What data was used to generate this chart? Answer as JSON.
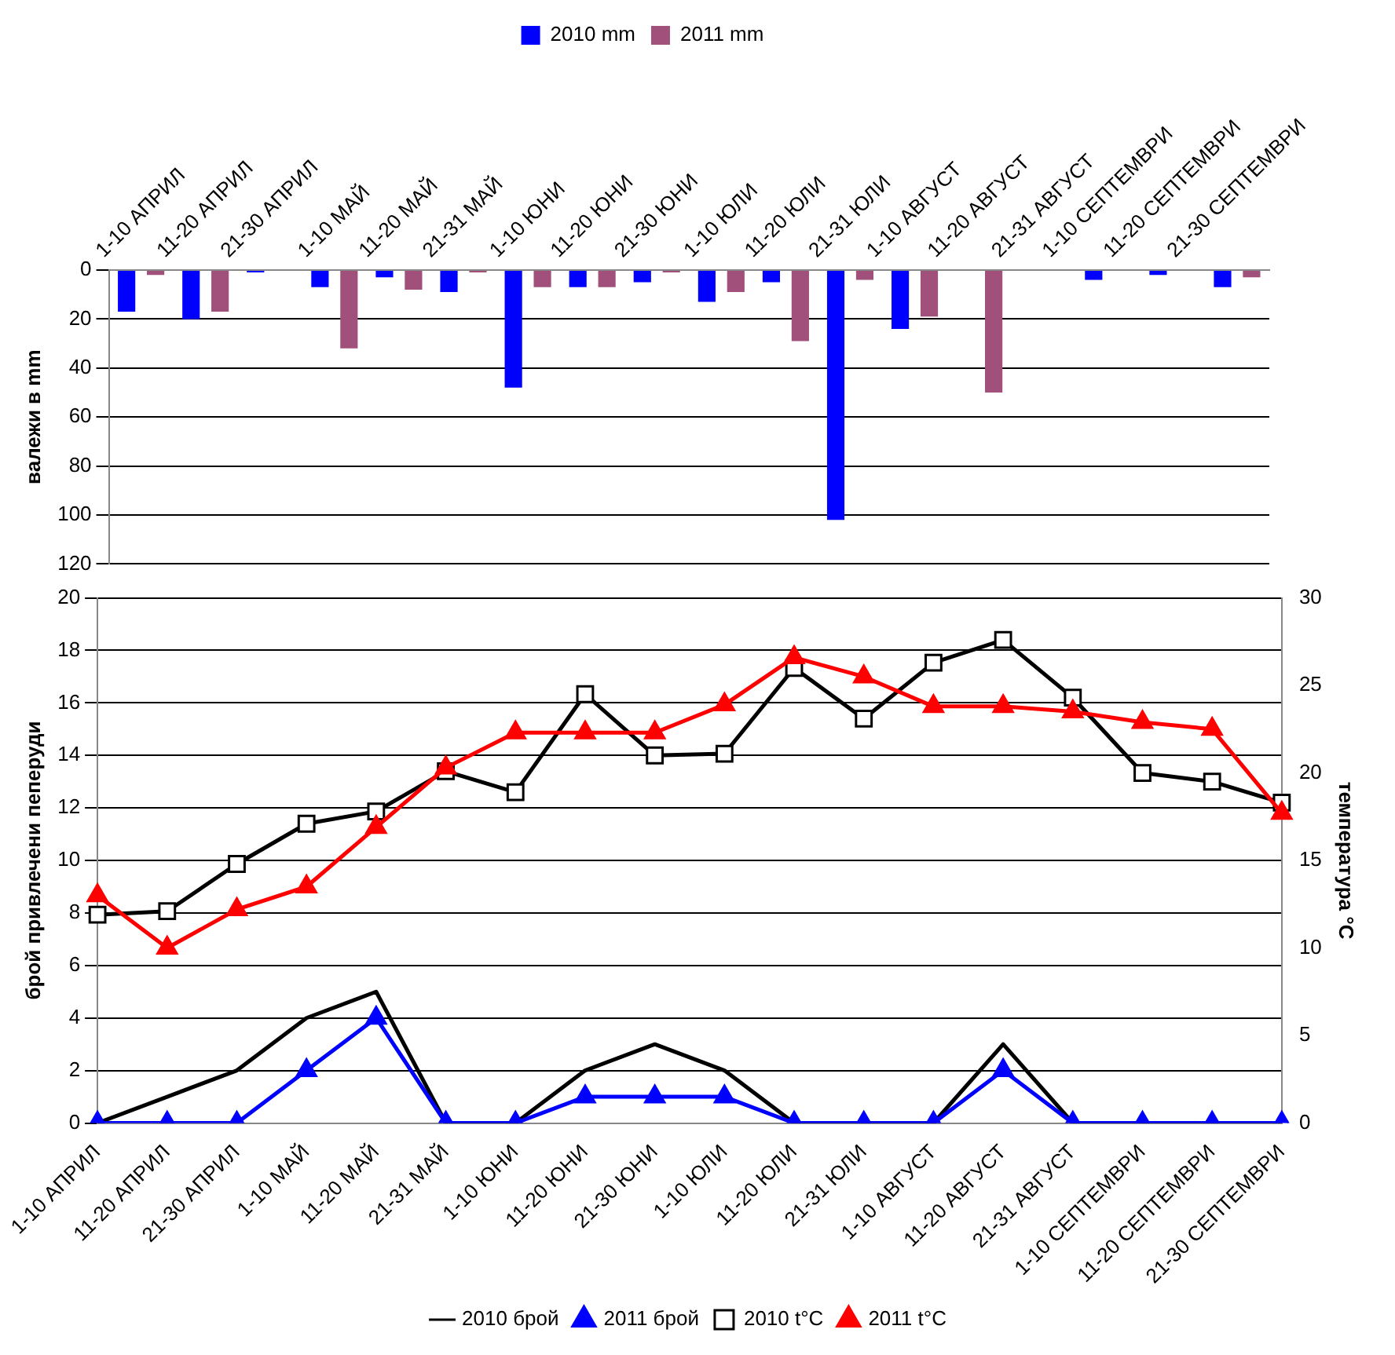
{
  "chart_data": [
    {
      "type": "bar",
      "ylabel": "валежи в mm",
      "categories": [
        "1-10 АПРИЛ",
        "11-20 АПРИЛ",
        "21-30 АПРИЛ",
        "1-10 МАЙ",
        "11-20 МАЙ",
        "21-31 МАЙ",
        "1-10 ЮНИ",
        "11-20 ЮНИ",
        "21-30 ЮНИ",
        "1-10 ЮЛИ",
        "11-20 ЮЛИ",
        "21-31 ЮЛИ",
        "1-10 АВГУСТ",
        "11-20 АВГУСТ",
        "21-31 АВГУСТ",
        "1-10 СЕПТЕМВРИ",
        "11-20 СЕПТЕМВРИ",
        "21-30 СЕПТЕМВРИ"
      ],
      "series": [
        {
          "name": "2010 mm",
          "color": "#0000ff",
          "values": [
            17,
            20,
            1,
            7,
            3,
            9,
            48,
            7,
            5,
            13,
            5,
            102,
            24,
            0,
            0,
            4,
            2,
            7
          ]
        },
        {
          "name": "2011 mm",
          "color": "#a0507a",
          "values": [
            2,
            17,
            0,
            32,
            8,
            1,
            7,
            7,
            1,
            9,
            29,
            4,
            19,
            50,
            0,
            0,
            0,
            3
          ]
        }
      ],
      "ylim": [
        120,
        0
      ],
      "yticks": [
        0,
        20,
        40,
        60,
        80,
        100,
        120
      ],
      "grid": "y",
      "legend": "top"
    },
    {
      "type": "line",
      "ylabel": "брой привлечени пеперуди",
      "y2label": "температура °C",
      "categories": [
        "1-10 АПРИЛ",
        "11-20 АПРИЛ",
        "21-30 АПРИЛ",
        "1-10 МАЙ",
        "11-20 МАЙ",
        "21-31 МАЙ",
        "1-10 ЮНИ",
        "11-20 ЮНИ",
        "21-30 ЮНИ",
        "1-10 ЮЛИ",
        "11-20 ЮЛИ",
        "21-31 ЮЛИ",
        "1-10 АВГУСТ",
        "11-20 АВГУСТ",
        "21-31 АВГУСТ",
        "1-10 СЕПТЕМВРИ",
        "11-20 СЕПТЕМВРИ",
        "21-30 СЕПТЕМВРИ"
      ],
      "series": [
        {
          "name": "2010 брой",
          "color": "#000000",
          "marker": "none",
          "values": [
            0,
            1,
            2,
            4,
            5,
            0,
            0,
            2,
            3,
            2,
            0,
            0,
            0,
            3,
            0,
            0,
            0,
            0
          ]
        },
        {
          "name": "2011 брой",
          "color": "#0000ff",
          "marker": "triangle",
          "values": [
            0,
            0,
            0,
            2,
            4,
            0,
            0,
            1,
            1,
            1,
            0,
            0,
            0,
            2,
            0,
            0,
            0,
            0
          ]
        },
        {
          "name": "2010 t°C",
          "color": "#000000",
          "marker": "square",
          "axis": "y2",
          "values": [
            11.9,
            12.1,
            14.8,
            17.1,
            17.8,
            20.1,
            18.9,
            24.5,
            21.0,
            21.1,
            26.0,
            23.1,
            26.3,
            27.6,
            24.3,
            20.0,
            19.5,
            18.3
          ]
        },
        {
          "name": "2011 t°C",
          "color": "#ff0000",
          "marker": "triangle",
          "axis": "y2",
          "values": [
            13.0,
            10.0,
            12.2,
            13.5,
            16.9,
            20.3,
            22.3,
            22.3,
            22.3,
            23.9,
            26.6,
            25.5,
            23.8,
            23.8,
            23.5,
            22.9,
            22.5,
            17.7
          ]
        }
      ],
      "ylim": [
        0,
        20
      ],
      "yticks": [
        0,
        2,
        4,
        6,
        8,
        10,
        12,
        14,
        16,
        18,
        20
      ],
      "y2lim": [
        0,
        30
      ],
      "y2ticks": [
        0,
        5,
        10,
        15,
        20,
        25,
        30
      ],
      "grid": "y",
      "legend": "bottom"
    }
  ]
}
